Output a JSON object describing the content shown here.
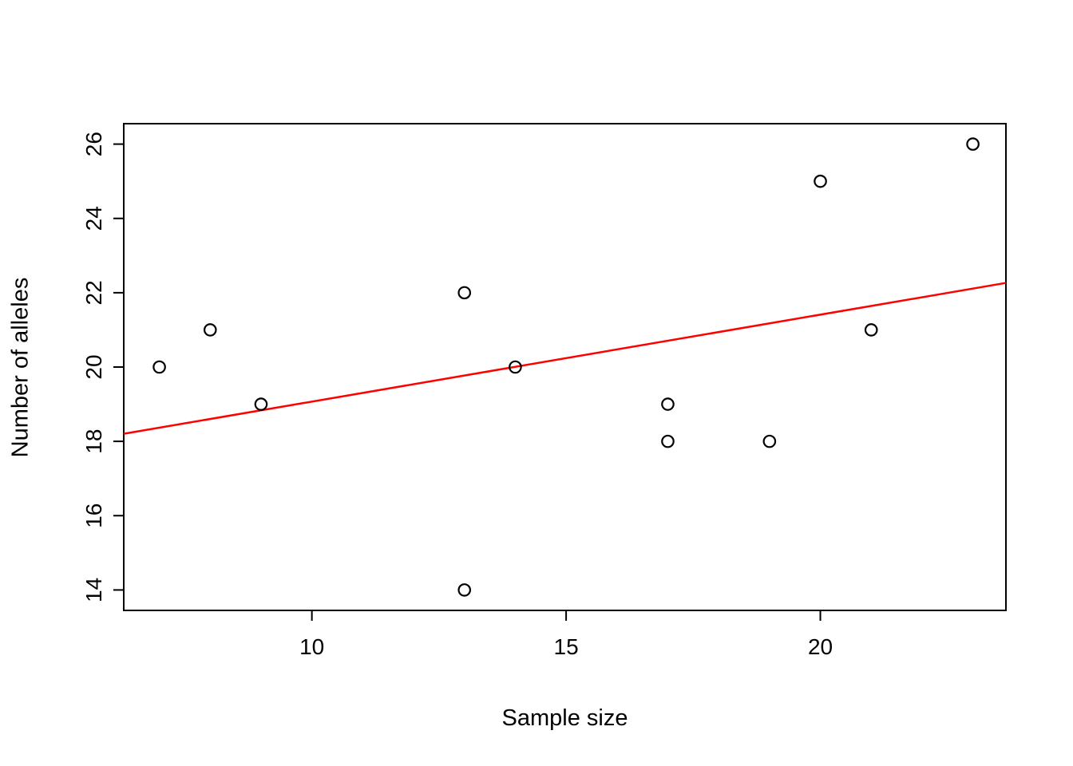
{
  "chart_data": {
    "type": "scatter",
    "title": "",
    "xlabel": "Sample size",
    "ylabel": "Number of alleles",
    "points": [
      {
        "x": 7,
        "y": 20
      },
      {
        "x": 8,
        "y": 21
      },
      {
        "x": 9,
        "y": 19
      },
      {
        "x": 13,
        "y": 22
      },
      {
        "x": 13,
        "y": 14
      },
      {
        "x": 14,
        "y": 20
      },
      {
        "x": 17,
        "y": 19
      },
      {
        "x": 17,
        "y": 18
      },
      {
        "x": 19,
        "y": 18
      },
      {
        "x": 20,
        "y": 25
      },
      {
        "x": 21,
        "y": 21
      },
      {
        "x": 23,
        "y": 26
      }
    ],
    "x_ticks": [
      10,
      15,
      20
    ],
    "y_ticks": [
      14,
      16,
      18,
      20,
      22,
      24,
      26
    ],
    "xlim": [
      6.3,
      23.65
    ],
    "ylim": [
      13.45,
      26.55
    ],
    "regression_line": {
      "slope": 0.234,
      "intercept": 16.73,
      "color": "#ff0000"
    },
    "point_style": "open-circle",
    "point_color": "#000000",
    "grid": false,
    "legend": false
  }
}
